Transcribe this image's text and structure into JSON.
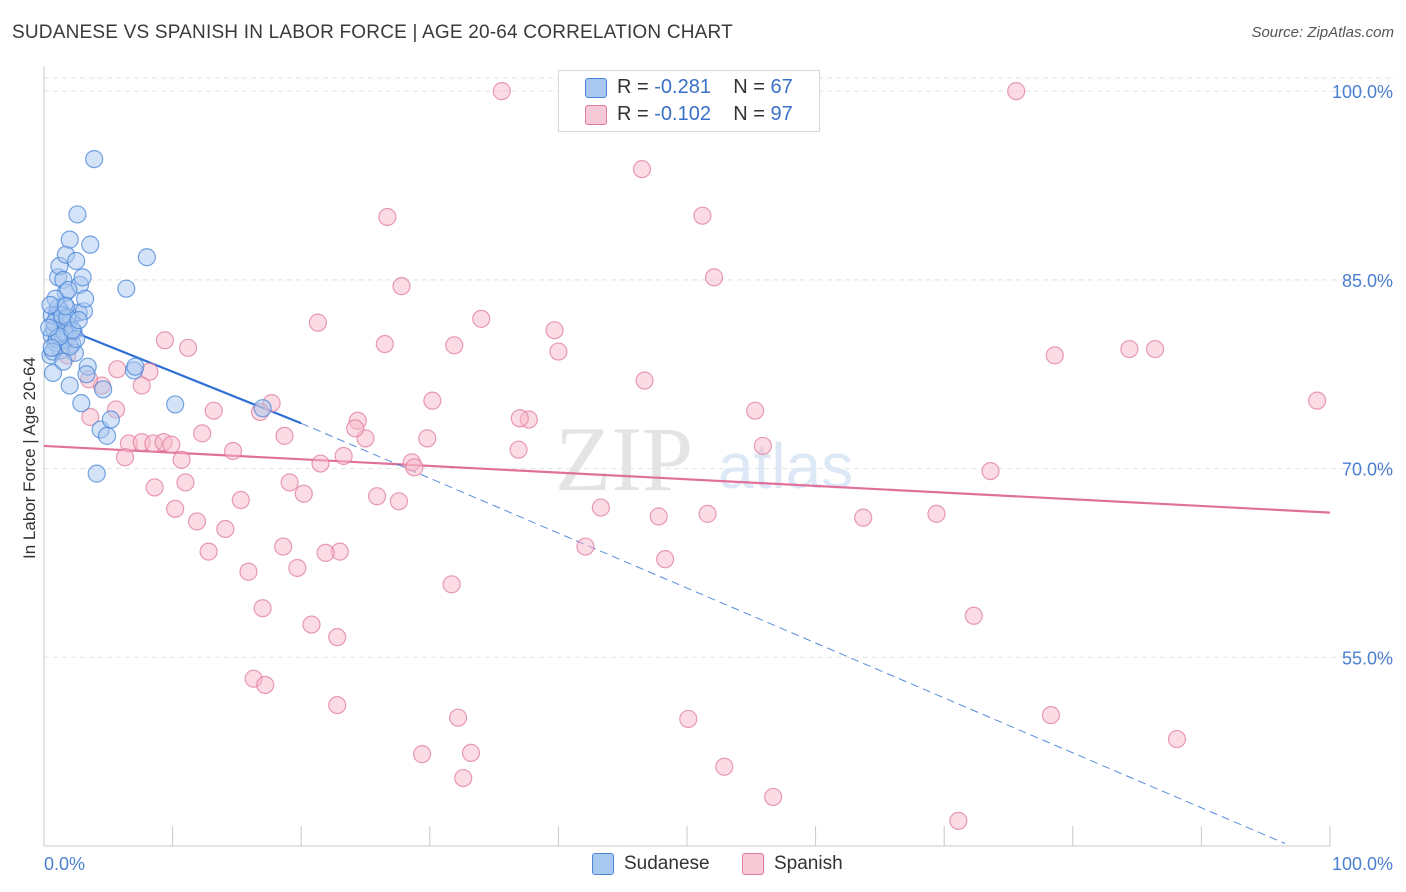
{
  "title": "SUDANESE VS SPANISH IN LABOR FORCE | AGE 20-64 CORRELATION CHART",
  "source": "Source: ZipAtlas.com",
  "watermark": {
    "zip": "ZIP",
    "atlas": "atlas"
  },
  "colors": {
    "sudanese_fill": "#a9c8f0",
    "sudanese_stroke": "#4a86d8",
    "sudanese_line": "#2e6fd6",
    "spanish_fill": "#f7b8ca",
    "spanish_stroke": "#e07c9c",
    "spanish_line": "#e0709a",
    "tick_text": "#4a7fd0",
    "grid": "#e2e2e2"
  },
  "legend": {
    "rows": [
      {
        "r_label": "R = ",
        "r_value": "-0.281",
        "n_label": "N = ",
        "n_value": "67"
      },
      {
        "r_label": "R = ",
        "r_value": "-0.102",
        "n_label": "N = ",
        "n_value": "97"
      }
    ]
  },
  "chart_data": {
    "type": "scatter",
    "xlabel": "",
    "ylabel": "In Labor Force | Age 20-64",
    "xlim": [
      0,
      100
    ],
    "ylim": [
      40,
      102
    ],
    "x_tick_labels": [
      "0.0%",
      "100.0%"
    ],
    "y_ticks": [
      55,
      70,
      85,
      100
    ],
    "y_tick_labels": [
      "55.0%",
      "70.0%",
      "85.0%",
      "100.0%"
    ],
    "series": [
      {
        "name": "Sudanese",
        "R": -0.281,
        "N": 67,
        "trend": {
          "x": [
            0,
            20
          ],
          "y": [
            81.8,
            73.6
          ]
        },
        "trend_extension": {
          "x": [
            20,
            96.5
          ],
          "y": [
            73.6,
            40.2
          ]
        },
        "points": [
          [
            0.6,
            80.6
          ],
          [
            0.8,
            81.1
          ],
          [
            0.5,
            79.0
          ],
          [
            0.6,
            82.2
          ],
          [
            0.7,
            77.6
          ],
          [
            0.9,
            80.0
          ],
          [
            1.0,
            82.3
          ],
          [
            1.1,
            85.2
          ],
          [
            1.2,
            86.1
          ],
          [
            1.3,
            82.5
          ],
          [
            1.4,
            81.8
          ],
          [
            1.5,
            80.2
          ],
          [
            1.5,
            85.0
          ],
          [
            1.6,
            83.0
          ],
          [
            1.7,
            84.0
          ],
          [
            1.7,
            87.0
          ],
          [
            1.8,
            81.4
          ],
          [
            1.9,
            80.6
          ],
          [
            2.0,
            88.2
          ],
          [
            2.0,
            76.6
          ],
          [
            2.1,
            82.0
          ],
          [
            2.2,
            79.9
          ],
          [
            2.3,
            80.9
          ],
          [
            2.4,
            79.2
          ],
          [
            2.5,
            86.5
          ],
          [
            2.6,
            90.2
          ],
          [
            2.7,
            82.4
          ],
          [
            2.8,
            84.6
          ],
          [
            2.9,
            75.2
          ],
          [
            3.0,
            85.2
          ],
          [
            3.1,
            82.5
          ],
          [
            3.2,
            83.5
          ],
          [
            3.4,
            78.1
          ],
          [
            3.6,
            87.8
          ],
          [
            3.9,
            94.6
          ],
          [
            4.1,
            69.6
          ],
          [
            4.4,
            73.1
          ],
          [
            4.6,
            76.3
          ],
          [
            4.9,
            72.6
          ],
          [
            5.2,
            73.9
          ],
          [
            0.8,
            81.6
          ],
          [
            1.0,
            80.3
          ],
          [
            1.3,
            79.4
          ],
          [
            1.6,
            80.8
          ],
          [
            2.0,
            79.7
          ],
          [
            2.5,
            80.3
          ],
          [
            1.1,
            82.8
          ],
          [
            1.4,
            82.2
          ],
          [
            1.8,
            82.0
          ],
          [
            0.7,
            79.3
          ],
          [
            1.2,
            80.5
          ],
          [
            0.9,
            83.5
          ],
          [
            2.2,
            81.0
          ],
          [
            1.5,
            78.5
          ],
          [
            6.4,
            84.3
          ],
          [
            7.0,
            77.8
          ],
          [
            7.1,
            78.1
          ],
          [
            8.0,
            86.8
          ],
          [
            10.2,
            75.1
          ],
          [
            17.0,
            74.8
          ],
          [
            0.4,
            81.2
          ],
          [
            0.5,
            83.0
          ],
          [
            1.9,
            84.2
          ],
          [
            2.7,
            81.8
          ],
          [
            3.3,
            77.5
          ],
          [
            0.6,
            79.6
          ],
          [
            1.7,
            82.9
          ]
        ]
      },
      {
        "name": "Spanish",
        "R": -0.102,
        "N": 97,
        "trend": {
          "x": [
            0,
            100
          ],
          "y": [
            71.8,
            66.5
          ]
        },
        "points": [
          [
            35.6,
            100.0
          ],
          [
            75.6,
            100.0
          ],
          [
            46.5,
            93.8
          ],
          [
            26.7,
            90.0
          ],
          [
            51.2,
            90.1
          ],
          [
            52.1,
            85.2
          ],
          [
            27.8,
            84.5
          ],
          [
            21.3,
            81.6
          ],
          [
            34.0,
            81.9
          ],
          [
            39.7,
            81.0
          ],
          [
            9.4,
            80.2
          ],
          [
            26.5,
            79.9
          ],
          [
            31.9,
            79.8
          ],
          [
            11.2,
            79.6
          ],
          [
            40.0,
            79.3
          ],
          [
            78.6,
            79.0
          ],
          [
            84.4,
            79.5
          ],
          [
            86.4,
            79.5
          ],
          [
            5.7,
            77.9
          ],
          [
            8.2,
            77.7
          ],
          [
            46.7,
            77.0
          ],
          [
            7.6,
            76.6
          ],
          [
            4.5,
            76.6
          ],
          [
            17.7,
            75.2
          ],
          [
            30.2,
            75.4
          ],
          [
            99.0,
            75.4
          ],
          [
            5.6,
            74.7
          ],
          [
            13.2,
            74.6
          ],
          [
            55.3,
            74.6
          ],
          [
            3.6,
            74.1
          ],
          [
            24.4,
            73.8
          ],
          [
            37.7,
            73.9
          ],
          [
            12.3,
            72.8
          ],
          [
            18.7,
            72.6
          ],
          [
            25.0,
            72.4
          ],
          [
            29.8,
            72.4
          ],
          [
            6.6,
            72.0
          ],
          [
            7.6,
            72.1
          ],
          [
            8.5,
            72.0
          ],
          [
            9.3,
            72.1
          ],
          [
            55.9,
            71.8
          ],
          [
            14.7,
            71.4
          ],
          [
            10.7,
            70.7
          ],
          [
            21.5,
            70.4
          ],
          [
            28.6,
            70.5
          ],
          [
            28.8,
            70.1
          ],
          [
            73.6,
            69.8
          ],
          [
            11.0,
            68.9
          ],
          [
            19.1,
            68.9
          ],
          [
            8.6,
            68.5
          ],
          [
            20.2,
            68.0
          ],
          [
            25.9,
            67.8
          ],
          [
            27.6,
            67.4
          ],
          [
            15.3,
            67.5
          ],
          [
            10.2,
            66.8
          ],
          [
            43.3,
            66.9
          ],
          [
            47.8,
            66.2
          ],
          [
            51.6,
            66.4
          ],
          [
            63.7,
            66.1
          ],
          [
            69.4,
            66.4
          ],
          [
            11.9,
            65.8
          ],
          [
            14.1,
            65.2
          ],
          [
            18.6,
            63.8
          ],
          [
            23.0,
            63.4
          ],
          [
            21.9,
            63.3
          ],
          [
            19.7,
            62.1
          ],
          [
            12.8,
            63.4
          ],
          [
            42.1,
            63.8
          ],
          [
            48.3,
            62.8
          ],
          [
            15.9,
            61.8
          ],
          [
            31.7,
            60.8
          ],
          [
            17.0,
            58.9
          ],
          [
            72.3,
            58.3
          ],
          [
            20.8,
            57.6
          ],
          [
            22.8,
            56.6
          ],
          [
            16.3,
            53.3
          ],
          [
            17.2,
            52.8
          ],
          [
            22.8,
            51.2
          ],
          [
            32.2,
            50.2
          ],
          [
            50.1,
            50.1
          ],
          [
            78.3,
            50.4
          ],
          [
            88.1,
            48.5
          ],
          [
            29.4,
            47.3
          ],
          [
            33.2,
            47.4
          ],
          [
            52.9,
            46.3
          ],
          [
            32.6,
            45.4
          ],
          [
            56.7,
            43.9
          ],
          [
            71.1,
            42.0
          ],
          [
            37.0,
            74.0
          ],
          [
            24.2,
            73.2
          ],
          [
            16.8,
            74.5
          ],
          [
            36.9,
            71.5
          ],
          [
            23.3,
            71.0
          ],
          [
            9.9,
            71.9
          ],
          [
            6.3,
            70.9
          ],
          [
            1.8,
            79.0
          ],
          [
            3.5,
            77.1
          ]
        ]
      }
    ]
  },
  "bottom_legend": [
    "Sudanese",
    "Spanish"
  ]
}
